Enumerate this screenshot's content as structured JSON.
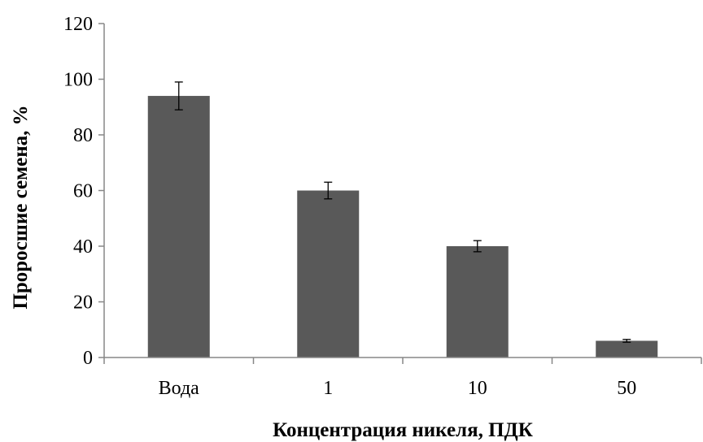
{
  "chart_data": {
    "type": "bar",
    "title": "",
    "xlabel": "Концентрация никеля, ПДК",
    "ylabel": "Проросшие семена, %",
    "categories": [
      "Вода",
      "1",
      "10",
      "50"
    ],
    "values": [
      94,
      60,
      40,
      6
    ],
    "errors": [
      5,
      3,
      2,
      0.5
    ],
    "ylim": [
      0,
      120
    ],
    "yticks": [
      0,
      20,
      40,
      60,
      80,
      100,
      120
    ],
    "grid": false,
    "legend": "none",
    "colors": {
      "bar": "#595959",
      "axis": "#878787"
    }
  }
}
